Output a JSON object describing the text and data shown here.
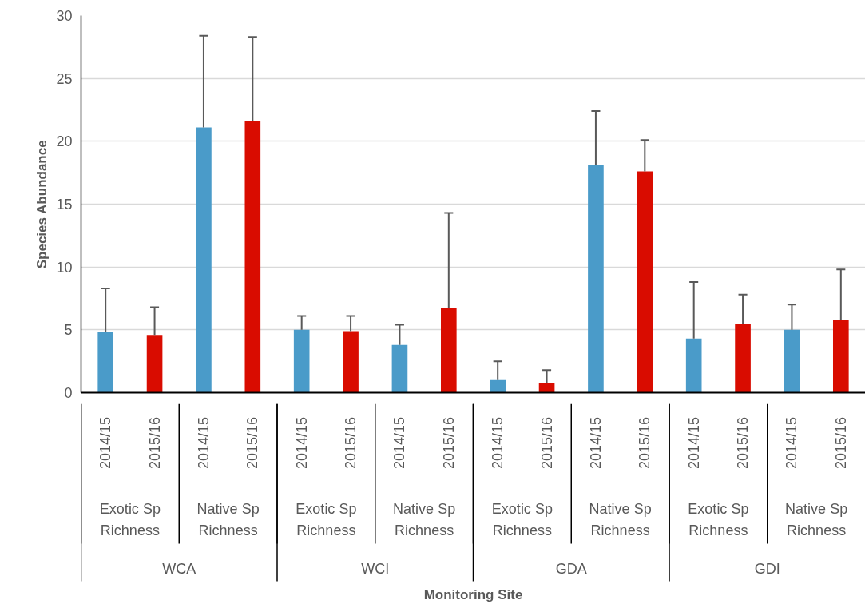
{
  "chart_data": {
    "type": "bar",
    "ylabel": "Species Abundance",
    "categories": [
      "2014/15",
      "2015/16",
      "2014/15",
      "2015/16",
      "2014/15",
      "2015/16",
      "2014/15",
      "2015/16",
      "2014/15",
      "2015/16",
      "2014/15",
      "2015/16",
      "2014/15",
      "2015/16",
      "2014/15",
      "2015/16"
    ],
    "values": [
      4.8,
      4.6,
      21.1,
      21.6,
      5.0,
      4.9,
      3.8,
      6.7,
      1.0,
      0.8,
      18.1,
      17.6,
      4.3,
      5.5,
      5.0,
      5.8
    ],
    "colors": [
      "#4a9bc9",
      "#d90c00",
      "#4a9bc9",
      "#d90c00",
      "#4a9bc9",
      "#d90c00",
      "#4a9bc9",
      "#d90c00",
      "#4a9bc9",
      "#d90c00",
      "#4a9bc9",
      "#d90c00",
      "#4a9bc9",
      "#d90c00",
      "#4a9bc9",
      "#d90c00"
    ],
    "errors": [
      [
        4.8,
        8.3
      ],
      [
        4.6,
        6.8
      ],
      [
        21.1,
        28.4
      ],
      [
        21.6,
        28.3
      ],
      [
        5.0,
        6.1
      ],
      [
        4.9,
        6.1
      ],
      [
        3.8,
        5.4
      ],
      [
        6.7,
        14.3
      ],
      [
        1.0,
        2.5
      ],
      [
        0.8,
        1.8
      ],
      [
        18.1,
        22.4
      ],
      [
        17.6,
        20.1
      ],
      [
        4.3,
        8.8
      ],
      [
        5.5,
        7.8
      ],
      [
        5.0,
        7.0
      ],
      [
        5.8,
        9.8
      ]
    ],
    "annotations": [
      "Exotic Sp Richness",
      "Native Sp Richness",
      "Exotic Sp Richness",
      "Native Sp Richness",
      "Exotic Sp Richness",
      "Native Sp Richness",
      "Exotic Sp Richness",
      "Native Sp Richness",
      "WCA",
      "WCI",
      "GDA",
      "GDI",
      "Monitoring Site"
    ],
    "ylim": [
      0,
      30
    ],
    "yticks": [
      0,
      5,
      10,
      15,
      20,
      25,
      30
    ],
    "grid": "y"
  }
}
